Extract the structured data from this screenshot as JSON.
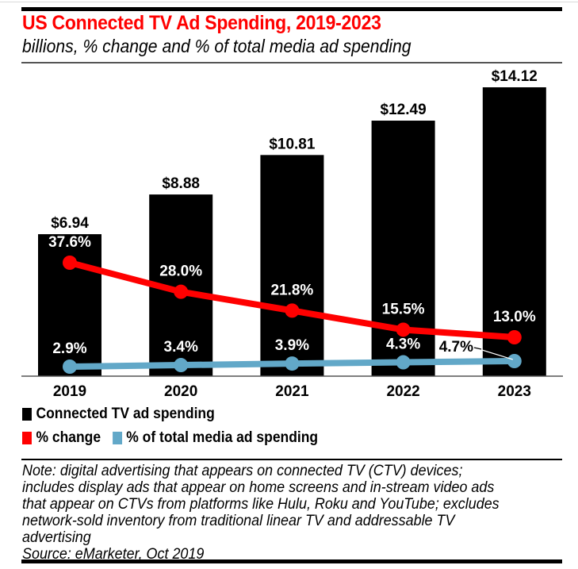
{
  "chart_data": {
    "type": "bar",
    "title": "US Connected TV Ad Spending, 2019-2023",
    "subtitle": "billions, % change and % of total media ad spending",
    "categories": [
      "2019",
      "2020",
      "2021",
      "2022",
      "2023"
    ],
    "series": [
      {
        "name": "Connected TV ad spending",
        "type": "bar",
        "color": "#000000",
        "values": [
          6.94,
          8.88,
          10.81,
          12.49,
          14.12
        ],
        "labels": [
          "$6.94",
          "$8.88",
          "$10.81",
          "$12.49",
          "$14.12"
        ]
      },
      {
        "name": "% change",
        "type": "line",
        "color": "#ff0000",
        "values": [
          37.6,
          28.0,
          21.8,
          15.5,
          13.0
        ],
        "labels": [
          "37.6%",
          "28.0%",
          "21.8%",
          "15.5%",
          "13.0%"
        ]
      },
      {
        "name": "% of total media ad spending",
        "type": "line",
        "color": "#62a8c8",
        "values": [
          2.9,
          3.4,
          3.9,
          4.3,
          4.7
        ],
        "labels": [
          "2.9%",
          "3.4%",
          "3.9%",
          "4.3%",
          "4.7%"
        ]
      }
    ],
    "xlabel": "",
    "ylabel": "",
    "ylim": [
      0,
      15
    ],
    "grid": false,
    "legend_position": "bottom-left"
  },
  "legend": {
    "row1": [
      {
        "label": "Connected TV ad spending",
        "color": "#000000"
      }
    ],
    "row2": [
      {
        "label": "% change",
        "color": "#ff0000"
      },
      {
        "label": "% of total media ad spending",
        "color": "#62a8c8"
      }
    ]
  },
  "notes": {
    "lines": [
      "Note: digital advertising that appears on connected TV (CTV) devices;",
      "includes display ads that appear on home screens and in-stream video ads",
      "that appear on CTVs from platforms like Hulu, Roku and YouTube; excludes",
      "network-sold inventory from traditional linear TV and addressable TV",
      "advertising"
    ],
    "source": "Source: eMarketer, Oct 2019"
  }
}
